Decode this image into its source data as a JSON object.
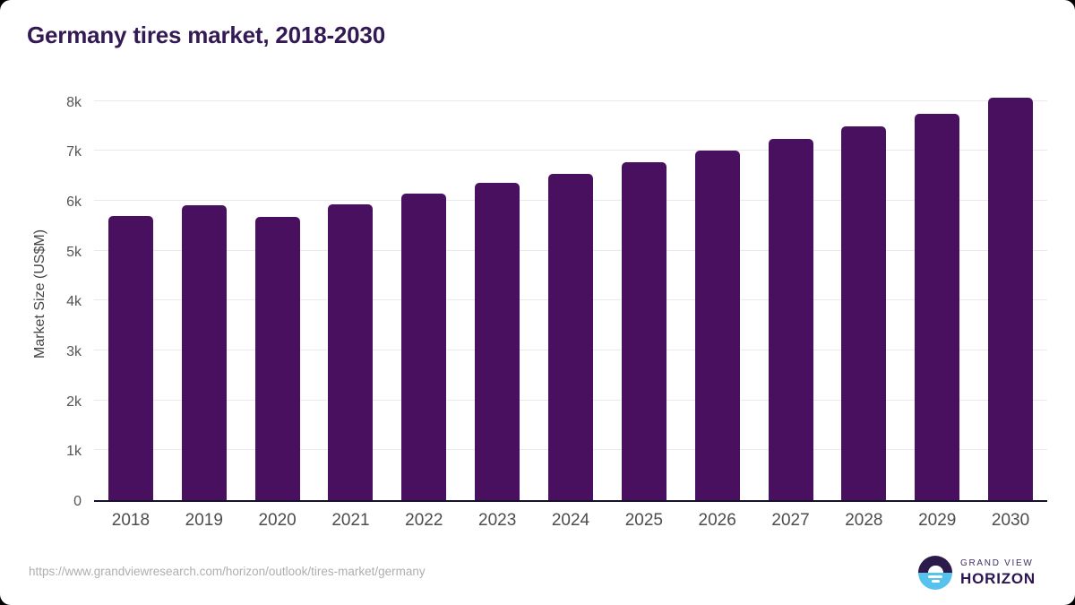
{
  "page": {
    "source_url": "https://www.grandviewresearch.com/horizon/outlook/tires-market/germany"
  },
  "chart_data": {
    "type": "bar",
    "title": "Germany tires market, 2018-2030",
    "xlabel": "",
    "ylabel": "Market Size (US$M)",
    "unit": "US$M",
    "categories": [
      "2018",
      "2019",
      "2020",
      "2021",
      "2022",
      "2023",
      "2024",
      "2025",
      "2026",
      "2027",
      "2028",
      "2029",
      "2030"
    ],
    "values": [
      5690,
      5900,
      5670,
      5920,
      6150,
      6360,
      6540,
      6770,
      7010,
      7230,
      7480,
      7740,
      8070
    ],
    "ylim": [
      0,
      8350
    ],
    "yticks": [
      {
        "value": 0,
        "label": "0"
      },
      {
        "value": 1000,
        "label": "1k"
      },
      {
        "value": 2000,
        "label": "2k"
      },
      {
        "value": 3000,
        "label": "3k"
      },
      {
        "value": 4000,
        "label": "4k"
      },
      {
        "value": 5000,
        "label": "5k"
      },
      {
        "value": 6000,
        "label": "6k"
      },
      {
        "value": 7000,
        "label": "7k"
      },
      {
        "value": 8000,
        "label": "8k"
      }
    ],
    "grid": "horizontal",
    "legend": "none",
    "bar_color": "#491060"
  },
  "branding": {
    "logo_line1": "GRAND VIEW",
    "logo_line2": "HORIZON",
    "logo_icon": "horizon-sunrise-icon",
    "logo_purple": "#2c1a4a",
    "logo_blue": "#57c2ee"
  },
  "colors": {
    "title_text": "#331a54",
    "bar": "#491060",
    "axis_line": "#15122a",
    "gridline": "#e9e9ed",
    "tick_text": "#555555",
    "url_text": "#b0adad",
    "card_background": "#ffffff",
    "page_background": "#000000"
  }
}
